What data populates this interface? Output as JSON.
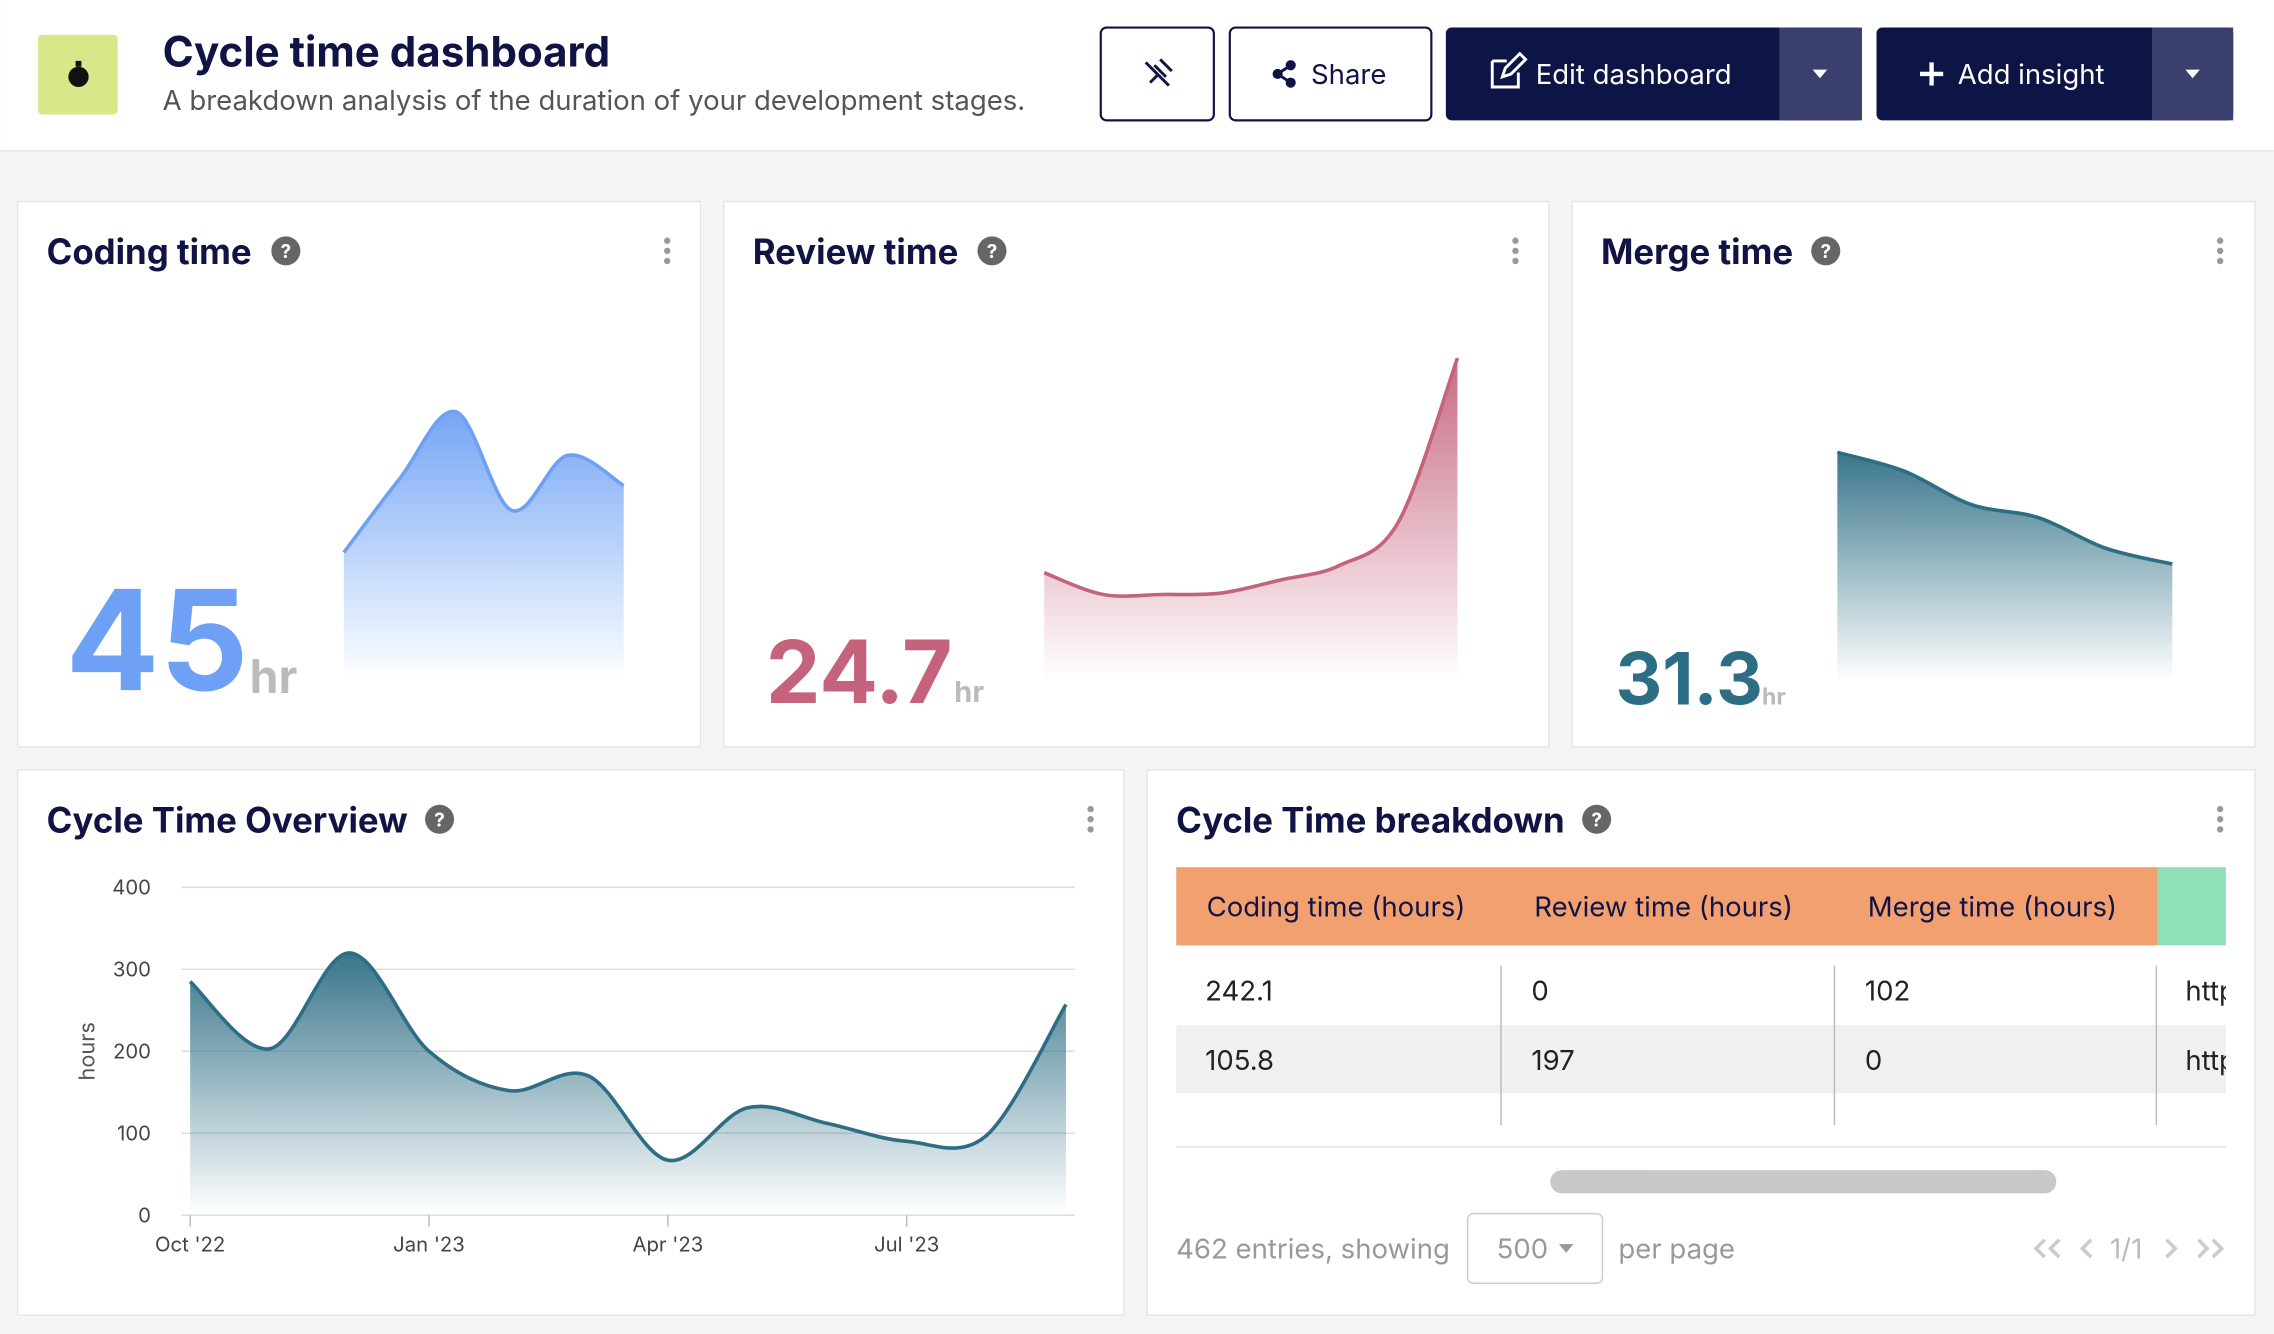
{
  "header": {
    "title": "Cycle time dashboard",
    "subtitle": "A breakdown analysis of the duration of your development stages.",
    "share": "Share",
    "edit": "Edit dashboard",
    "add": "Add insight"
  },
  "cards": [
    {
      "title": "Coding time",
      "value": 45,
      "unit": "hr",
      "color": "#6ea1f5",
      "trend": [
        89,
        140,
        186,
        118,
        156,
        135
      ]
    },
    {
      "title": "Review time",
      "value": 24.7,
      "unit": "hr",
      "color": "#c5637c",
      "trend": [
        75,
        60,
        60,
        61,
        70,
        80,
        110,
        223
      ]
    },
    {
      "title": "Merge time",
      "value": 31.3,
      "unit": "hr",
      "color": "#2e6e85",
      "trend": [
        158,
        145,
        122,
        113,
        92,
        81
      ]
    }
  ],
  "chart_data": {
    "type": "area",
    "title": "Cycle Time Overview",
    "y_label": "hours",
    "categories": [
      "Oct '22",
      null,
      null,
      "Jan '23",
      null,
      null,
      "Apr '23",
      null,
      null,
      "Jul '23",
      null,
      null
    ],
    "values": [
      285,
      203,
      320,
      200,
      152,
      170,
      67,
      131,
      112,
      90,
      97,
      257
    ],
    "color": "#2e6e85",
    "ylim": [
      0,
      400
    ],
    "yticks": [
      0,
      100,
      200,
      300,
      400
    ],
    "grid": true
  },
  "breakdown": {
    "title": "Cycle Time breakdown",
    "columns": [
      "Coding time (hours)",
      "Review time (hours)",
      "Merge time (hours)"
    ],
    "rows": [
      [
        242.1,
        0,
        102,
        "http"
      ],
      [
        105.8,
        197,
        0,
        "http"
      ]
    ],
    "entries": "462 entries, showing",
    "page_size": "500",
    "per_page": "per page",
    "page": "1/1"
  }
}
